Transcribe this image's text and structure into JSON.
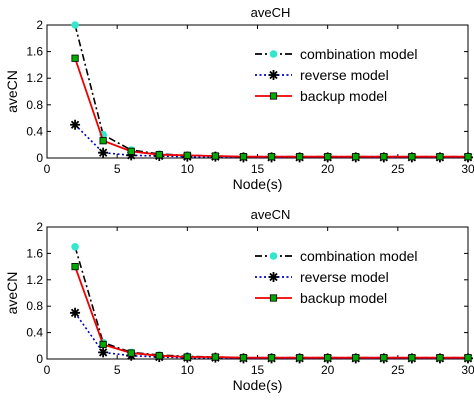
{
  "chart_data": [
    {
      "type": "line",
      "title": "aveCH",
      "xlabel": "Node(s)",
      "ylabel": "aveCN",
      "xlim": [
        0,
        30
      ],
      "ylim": [
        0,
        2
      ],
      "xticks": [
        "0",
        "5",
        "10",
        "15",
        "20",
        "25",
        "30"
      ],
      "yticks": [
        "0",
        "0.4",
        "0.8",
        "1.2",
        "1.6",
        "2"
      ],
      "x": [
        2,
        4,
        6,
        8,
        10,
        12,
        14,
        16,
        18,
        20,
        22,
        24,
        26,
        28,
        30
      ],
      "legend_position": "top-right",
      "series": [
        {
          "name": "combination model",
          "color": "#000000",
          "marker_color": "#33e6cc",
          "marker": "circle",
          "dash": "dashdot",
          "values": [
            2.0,
            0.35,
            0.12,
            0.06,
            0.04,
            0.03,
            0.02,
            0.02,
            0.02,
            0.02,
            0.02,
            0.02,
            0.02,
            0.02,
            0.02
          ]
        },
        {
          "name": "reverse model",
          "color": "#0000cc",
          "marker_color": "#000000",
          "marker": "star",
          "dash": "dotted",
          "values": [
            0.5,
            0.08,
            0.04,
            0.03,
            0.02,
            0.02,
            0.01,
            0.01,
            0.01,
            0.01,
            0.01,
            0.01,
            0.01,
            0.01,
            0.01
          ]
        },
        {
          "name": "backup model",
          "color": "#ee0000",
          "marker_color": "#00aa00",
          "marker": "square",
          "dash": "solid",
          "values": [
            1.5,
            0.26,
            0.1,
            0.05,
            0.04,
            0.03,
            0.02,
            0.02,
            0.02,
            0.02,
            0.02,
            0.02,
            0.02,
            0.02,
            0.02
          ]
        }
      ]
    },
    {
      "type": "line",
      "title": "aveCN",
      "xlabel": "Node(s)",
      "ylabel": "aveCN",
      "xlim": [
        0,
        30
      ],
      "ylim": [
        0,
        2
      ],
      "xticks": [
        "0",
        "5",
        "10",
        "15",
        "20",
        "25",
        "30"
      ],
      "yticks": [
        "0",
        "0.4",
        "0.8",
        "1.2",
        "1.6",
        "2"
      ],
      "x": [
        2,
        4,
        6,
        8,
        10,
        12,
        14,
        16,
        18,
        20,
        22,
        24,
        26,
        28,
        30
      ],
      "legend_position": "top-right",
      "series": [
        {
          "name": "combination model",
          "color": "#000000",
          "marker_color": "#33e6cc",
          "marker": "circle",
          "dash": "dashdot",
          "values": [
            1.7,
            0.25,
            0.1,
            0.06,
            0.04,
            0.03,
            0.02,
            0.02,
            0.02,
            0.02,
            0.02,
            0.02,
            0.02,
            0.02,
            0.02
          ]
        },
        {
          "name": "reverse model",
          "color": "#0000cc",
          "marker_color": "#000000",
          "marker": "star",
          "dash": "dotted",
          "values": [
            0.7,
            0.1,
            0.05,
            0.03,
            0.02,
            0.02,
            0.01,
            0.01,
            0.01,
            0.01,
            0.01,
            0.01,
            0.01,
            0.01,
            0.01
          ]
        },
        {
          "name": "backup model",
          "color": "#ee0000",
          "marker_color": "#00aa00",
          "marker": "square",
          "dash": "solid",
          "values": [
            1.4,
            0.22,
            0.09,
            0.05,
            0.03,
            0.03,
            0.02,
            0.02,
            0.02,
            0.02,
            0.02,
            0.02,
            0.02,
            0.02,
            0.02
          ]
        }
      ]
    }
  ]
}
